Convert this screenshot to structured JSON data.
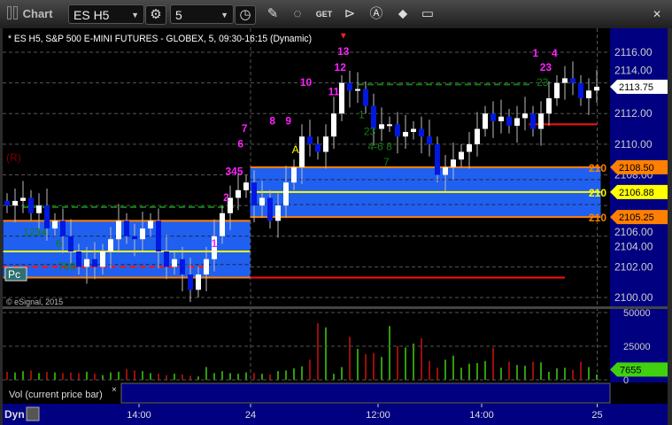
{
  "toolbar": {
    "title": "Chart",
    "symbol": "ES H5",
    "interval": "5",
    "icons": [
      "gear-icon",
      "clock-icon",
      "pencil-icon",
      "study-icon",
      "get-data-icon",
      "play-icon",
      "alert-icon",
      "link-icon",
      "comment-icon"
    ],
    "close": "✕"
  },
  "chart": {
    "header": "* ES H5, S&P 500 E-MINI FUTURES - GLOBEX, 5, 09:30-16:15 (Dynamic)",
    "copyright": "© eSignal, 2015",
    "r_label": "(R)",
    "pc_label": "Pc",
    "vol_label": "Vol (current price bar)",
    "vol_close": "×",
    "dyn_label": "Dyn",
    "colors": {
      "up": "#ffffff",
      "down": "#0018e0",
      "band": "#2060f0",
      "orange": "#ff8000",
      "yellow": "#ffff00",
      "axis_bg": "#000080",
      "vol_up": "#40d010",
      "vol_down": "#d01010",
      "magenta": "#ff20ff",
      "green_text": "#108010"
    }
  },
  "chart_data": {
    "type": "candlestick",
    "price_axis": {
      "ticks": [
        "2116.00",
        "2114.00",
        "2112.00",
        "2110.00",
        "2108.00",
        "2106.00",
        "2104.00",
        "2102.00",
        "2100.00"
      ],
      "ylim": [
        2099.6,
        2117.4
      ]
    },
    "price_tags": [
      {
        "value": "2113.75",
        "price": 2113.75,
        "color": "#ffffff",
        "side_label": ""
      },
      {
        "value": "2108.50",
        "price": 2108.5,
        "color": "#ff8000",
        "side_label": "210"
      },
      {
        "value": "2106.88",
        "price": 2106.88,
        "color": "#ffff00",
        "side_label": "210"
      },
      {
        "value": "2105.25",
        "price": 2105.25,
        "color": "#ff8000",
        "side_label": "210"
      }
    ],
    "time_axis": [
      {
        "label": "14:00",
        "bar": 17
      },
      {
        "label": "24",
        "bar": 31
      },
      {
        "label": "12:00",
        "bar": 47
      },
      {
        "label": "14:00",
        "bar": 60
      },
      {
        "label": "25",
        "bar": 74.5
      }
    ],
    "closes": [
      2106,
      2106.3,
      2106.5,
      2105.5,
      2106,
      2104.5,
      2105,
      2104,
      2103,
      2102,
      2102.5,
      2102,
      2103,
      2103.8,
      2105,
      2104,
      2103.8,
      2104.5,
      2105,
      2103,
      2102,
      2102.5,
      2101.5,
      2100.5,
      2101.5,
      2102.5,
      2104,
      2105.5,
      2106.5,
      2107,
      2107.5,
      2106,
      2106.5,
      2105,
      2106,
      2107.5,
      2108.5,
      2110.5,
      2110,
      2109.5,
      2110.5,
      2112,
      2114,
      2113.5,
      2113.6,
      2112.5,
      2111,
      2111.3,
      2111.3,
      2110.5,
      2110.8,
      2111,
      2110.5,
      2110,
      2108,
      2108.5,
      2109,
      2109.5,
      2110,
      2111,
      2112,
      2111.5,
      2111.8,
      2111.2,
      2111.7,
      2112,
      2111,
      2112,
      2113,
      2114,
      2114.3,
      2114,
      2113,
      2113.5,
      2113.75
    ],
    "volume": {
      "axis_ticks": [
        "50000",
        "25000",
        "0"
      ],
      "ylim": [
        0,
        50000
      ],
      "current": "7655",
      "values": [
        6000,
        5500,
        6500,
        7000,
        5000,
        6000,
        5500,
        5000,
        5500,
        5000,
        6000,
        4500,
        3500,
        5500,
        6000,
        8000,
        7000,
        6500,
        5000,
        4500,
        3500,
        4500,
        4000,
        3000,
        2500,
        9500,
        5000,
        6500,
        5000,
        4500,
        5500,
        5000,
        4500,
        4000,
        6500,
        7000,
        8500,
        10000,
        15000,
        42000,
        39000,
        4500,
        9500,
        32000,
        23000,
        19000,
        20000,
        17000,
        40000,
        25000,
        24000,
        27000,
        31000,
        14000,
        9000,
        15000,
        18000,
        9000,
        12000,
        12500,
        14000,
        24000,
        9000,
        13500,
        11000,
        10500,
        13500,
        13000,
        6000,
        8500,
        9000,
        7500,
        13500,
        9500,
        4000
      ]
    },
    "bands": [
      {
        "from_bar": -0.5,
        "to_bar": 30.5,
        "top": 2105,
        "mid": 2103,
        "bottom": 2101.3
      },
      {
        "from_bar": 30.5,
        "to_bar": 74.5,
        "top": 2108.5,
        "mid": 2106.88,
        "bottom": 2105.25
      }
    ],
    "lines": [
      {
        "type": "green-dashed",
        "price": 2105.9,
        "from_bar": 2,
        "to_bar": 29
      },
      {
        "type": "green-dashed",
        "price": 2113.9,
        "from_bar": 44,
        "to_bar": 66
      },
      {
        "type": "red-dashed",
        "price": 2102,
        "from_bar": -0.5,
        "to_bar": 25
      },
      {
        "type": "red-solid",
        "price": 2101.3,
        "from_bar": 30.5,
        "to_bar": 70
      },
      {
        "type": "red-solid",
        "price": 2111.3,
        "from_bar": 65.5,
        "to_bar": 74
      }
    ],
    "annotations": [
      {
        "text": "1234",
        "bar": 3.5,
        "price": 2104,
        "color": "green"
      },
      {
        "text": "6",
        "bar": 6.5,
        "price": 2103.3,
        "color": "green"
      },
      {
        "text": "789",
        "bar": 7.5,
        "price": 2101.8,
        "color": "green"
      },
      {
        "text": "1",
        "bar": 26,
        "price": 2103.3,
        "color": "magenta"
      },
      {
        "text": "2",
        "bar": 27.5,
        "price": 2106.3,
        "color": "magenta"
      },
      {
        "text": "345",
        "bar": 28.5,
        "price": 2108,
        "color": "magenta"
      },
      {
        "text": "6",
        "bar": 29.3,
        "price": 2109.8,
        "color": "magenta"
      },
      {
        "text": "7",
        "bar": 29.8,
        "price": 2110.8,
        "color": "magenta"
      },
      {
        "text": "8",
        "bar": 33.3,
        "price": 2111.3,
        "color": "magenta"
      },
      {
        "text": "9",
        "bar": 35.3,
        "price": 2111.3,
        "color": "magenta"
      },
      {
        "text": "A",
        "bar": 36.2,
        "price": 2109.4,
        "color": "yellow"
      },
      {
        "text": "10",
        "bar": 37.5,
        "price": 2113.8,
        "color": "magenta"
      },
      {
        "text": "11",
        "bar": 41,
        "price": 2113.2,
        "color": "magenta"
      },
      {
        "text": "12",
        "bar": 41.8,
        "price": 2114.8,
        "color": "magenta"
      },
      {
        "text": "13",
        "bar": 42.2,
        "price": 2116.2,
        "color": "magenta"
      },
      {
        "text": "1",
        "bar": 44.5,
        "price": 2111.7,
        "color": "green"
      },
      {
        "text": "23",
        "bar": 45.5,
        "price": 2110.6,
        "color": "green"
      },
      {
        "text": "4-6 8",
        "bar": 46.8,
        "price": 2110.2,
        "color": "green"
      },
      {
        "text": "7",
        "bar": 47.6,
        "price": 2109.3,
        "color": "green"
      },
      {
        "text": "1",
        "bar": 66.3,
        "price": 2116.8,
        "color": "magenta"
      },
      {
        "text": "23",
        "bar": 67.2,
        "price": 2113.8,
        "color": "green"
      },
      {
        "text": "23",
        "bar": 67.6,
        "price": 2117.1,
        "color": "magenta"
      },
      {
        "text": "4",
        "bar": 68.7,
        "price": 2117.7,
        "color": "magenta"
      }
    ]
  }
}
